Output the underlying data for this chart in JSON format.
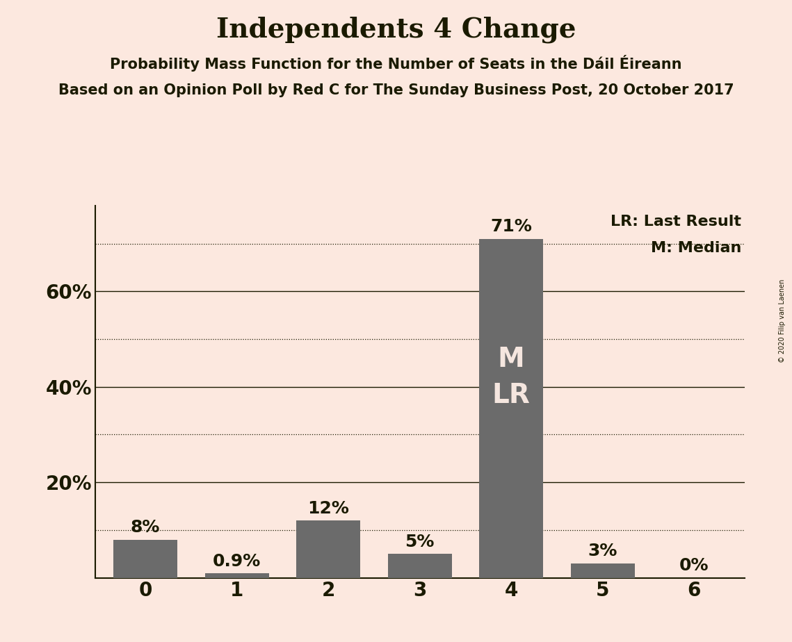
{
  "title": "Independents 4 Change",
  "subtitle1": "Probability Mass Function for the Number of Seats in the Dáil Éireann",
  "subtitle2": "Based on an Opinion Poll by Red C for The Sunday Business Post, 20 October 2017",
  "copyright": "© 2020 Filip van Laenen",
  "categories": [
    0,
    1,
    2,
    3,
    4,
    5,
    6
  ],
  "values": [
    0.08,
    0.009,
    0.12,
    0.05,
    0.71,
    0.03,
    0.0
  ],
  "labels": [
    "8%",
    "0.9%",
    "12%",
    "5%",
    "71%",
    "3%",
    "0%"
  ],
  "bar_color": "#6b6b6b",
  "bg_color": "#fce8df",
  "text_color": "#1a1a00",
  "median_bar": 4,
  "last_result_bar": 4,
  "median_label": "M",
  "last_result_label": "LR",
  "legend_lr": "LR: Last Result",
  "legend_m": "M: Median",
  "solid_gridlines": [
    0.2,
    0.4,
    0.6
  ],
  "dotted_gridlines": [
    0.1,
    0.3,
    0.5,
    0.7
  ],
  "yticks_labeled": [
    0.2,
    0.4,
    0.6
  ],
  "yticklabels": [
    "20%",
    "40%",
    "60%"
  ],
  "ylim": [
    0,
    0.78
  ],
  "title_fontsize": 28,
  "subtitle_fontsize": 15,
  "tick_fontsize": 20,
  "label_fontsize": 18,
  "inner_label_fontsize": 28,
  "legend_fontsize": 16
}
